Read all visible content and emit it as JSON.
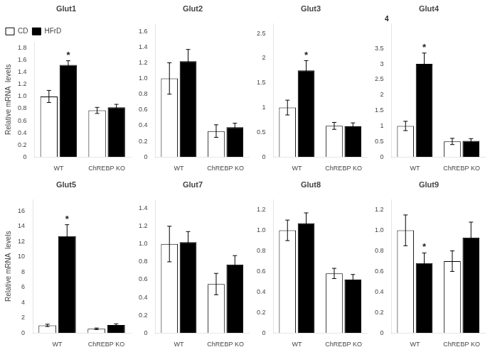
{
  "chart_data": [
    {
      "type": "bar",
      "title": "Glut1",
      "ylabel": "Relative mRNA  levels",
      "categories": [
        "WT",
        "ChREBP KO"
      ],
      "series": [
        {
          "name": "CD",
          "color": "white",
          "values": [
            1.0,
            0.77
          ],
          "errors": [
            0.1,
            0.05
          ]
        },
        {
          "name": "HFrD",
          "color": "black",
          "values": [
            1.52,
            0.82
          ],
          "errors": [
            0.07,
            0.05
          ]
        }
      ],
      "ylim": [
        0,
        1.9
      ],
      "yticks": [
        0,
        0.2,
        0.4,
        0.6,
        0.8,
        {
          "value": 1.0,
          "label": "1.0"
        },
        1.2,
        1.4,
        1.6,
        1.8
      ],
      "annotations": [
        {
          "text": "*",
          "category": "WT",
          "series": "HFrD"
        }
      ],
      "grid": false,
      "legend": "upper left"
    },
    {
      "type": "bar",
      "title": "Glut2",
      "categories": [
        "WT",
        "ChREBP KO"
      ],
      "series": [
        {
          "name": "CD",
          "color": "white",
          "values": [
            1.0,
            0.33
          ],
          "errors": [
            0.2,
            0.08
          ]
        },
        {
          "name": "HFrD",
          "color": "black",
          "values": [
            1.22,
            0.38
          ],
          "errors": [
            0.15,
            0.05
          ]
        }
      ],
      "ylim": [
        0,
        1.7
      ],
      "yticks": [
        0,
        0.2,
        0.4,
        0.6,
        0.8,
        {
          "value": 1.0,
          "label": "1.0"
        },
        1.2,
        1.4,
        1.6
      ],
      "grid": false
    },
    {
      "type": "bar",
      "title": "Glut3",
      "categories": [
        "WT",
        "ChREBP KO"
      ],
      "series": [
        {
          "name": "CD",
          "color": "white",
          "values": [
            1.0,
            0.63
          ],
          "errors": [
            0.15,
            0.07
          ]
        },
        {
          "name": "HFrD",
          "color": "black",
          "values": [
            1.75,
            0.62
          ],
          "errors": [
            0.2,
            0.07
          ]
        }
      ],
      "ylim": [
        0,
        2.7
      ],
      "yticks": [
        0,
        0.5,
        1,
        1.5,
        2,
        2.5
      ],
      "annotations": [
        {
          "text": "*",
          "category": "WT",
          "series": "HFrD"
        }
      ],
      "grid": false
    },
    {
      "type": "bar",
      "title": "Glut4",
      "categories": [
        "WT",
        "ChREBP KO"
      ],
      "series": [
        {
          "name": "CD",
          "color": "white",
          "values": [
            1.0,
            0.5
          ],
          "errors": [
            0.15,
            0.1
          ]
        },
        {
          "name": "HFrD",
          "color": "black",
          "values": [
            3.0,
            0.52
          ],
          "errors": [
            0.35,
            0.07
          ]
        }
      ],
      "ylim": [
        0,
        4.3
      ],
      "yticks": [
        0,
        0.5,
        1,
        1.5,
        2,
        2.5,
        3,
        3.5,
        {
          "value": 4,
          "label": null
        }
      ],
      "annotations": [
        {
          "text": "*",
          "category": "WT",
          "series": "HFrD"
        },
        {
          "text": "4"
        }
      ],
      "grid": false
    },
    {
      "type": "bar",
      "title": "Glut5",
      "ylabel": "Relative mRNA  levels",
      "categories": [
        "WT",
        "ChREBP KO"
      ],
      "series": [
        {
          "name": "CD",
          "color": "white",
          "values": [
            1.0,
            0.55
          ],
          "errors": [
            0.15,
            0.1
          ]
        },
        {
          "name": "HFrD",
          "color": "black",
          "values": [
            12.7,
            1.05
          ],
          "errors": [
            1.5,
            0.15
          ]
        }
      ],
      "ylim": [
        0,
        17.5
      ],
      "yticks": [
        0,
        2,
        4,
        6,
        8,
        10,
        12,
        14,
        16
      ],
      "annotations": [
        {
          "text": "*",
          "category": "WT",
          "series": "HFrD"
        }
      ],
      "grid": false
    },
    {
      "type": "bar",
      "title": "Glut7",
      "categories": [
        "WT",
        "ChREBP KO"
      ],
      "series": [
        {
          "name": "CD",
          "color": "white",
          "values": [
            1.0,
            0.55
          ],
          "errors": [
            0.2,
            0.12
          ]
        },
        {
          "name": "HFrD",
          "color": "black",
          "values": [
            1.02,
            0.77
          ],
          "errors": [
            0.12,
            0.1
          ]
        }
      ],
      "ylim": [
        0,
        1.5
      ],
      "yticks": [
        0,
        0.2,
        0.4,
        0.6,
        0.8,
        {
          "value": 1.0,
          "label": "1.0"
        },
        1.2,
        1.4
      ],
      "grid": false
    },
    {
      "type": "bar",
      "title": "Glut8",
      "categories": [
        "WT",
        "ChREBP KO"
      ],
      "series": [
        {
          "name": "CD",
          "color": "white",
          "values": [
            1.0,
            0.58
          ],
          "errors": [
            0.1,
            0.05
          ]
        },
        {
          "name": "HFrD",
          "color": "black",
          "values": [
            1.07,
            0.52
          ],
          "errors": [
            0.1,
            0.05
          ]
        }
      ],
      "ylim": [
        0,
        1.3
      ],
      "yticks": [
        0,
        0.2,
        0.4,
        0.6,
        0.8,
        {
          "value": 1.0,
          "label": "1.0"
        },
        1.2
      ],
      "grid": false
    },
    {
      "type": "bar",
      "title": "Glut9",
      "categories": [
        "WT",
        "ChREBP KO"
      ],
      "series": [
        {
          "name": "CD",
          "color": "white",
          "values": [
            1.0,
            0.7
          ],
          "errors": [
            0.15,
            0.1
          ]
        },
        {
          "name": "HFrD",
          "color": "black",
          "values": [
            0.68,
            0.93
          ],
          "errors": [
            0.1,
            0.15
          ]
        }
      ],
      "ylim": [
        0,
        1.3
      ],
      "yticks": [
        0,
        0.2,
        0.4,
        0.6,
        0.8,
        {
          "value": 1.0,
          "label": "1.0"
        },
        1.2
      ],
      "annotations": [
        {
          "text": "*",
          "category": "WT",
          "series": "HFrD"
        }
      ],
      "grid": false
    }
  ]
}
